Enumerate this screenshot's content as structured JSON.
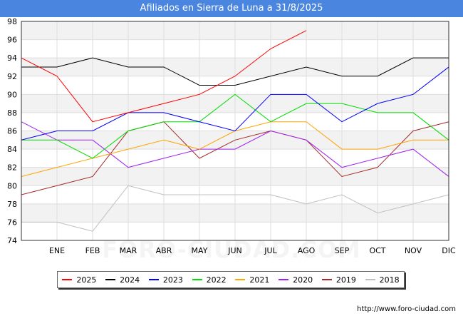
{
  "header": {
    "title": "Afiliados en Sierra de Luna a 31/8/2025"
  },
  "watermark": "FORO-CIUDAD.COM",
  "source": "http://www.foro-ciudad.com",
  "chart_data": {
    "type": "line",
    "title": "Afiliados en Sierra de Luna a 31/8/2025",
    "xlabel": "",
    "ylabel": "",
    "ylim": [
      74,
      98
    ],
    "yticks": [
      74,
      76,
      78,
      80,
      82,
      84,
      86,
      88,
      90,
      92,
      94,
      96,
      98
    ],
    "categories": [
      "",
      "ENE",
      "FEB",
      "MAR",
      "ABR",
      "MAY",
      "JUN",
      "JUL",
      "AGO",
      "SEP",
      "OCT",
      "NOV",
      "DIC"
    ],
    "legend_position": "bottom",
    "grid": true,
    "series": [
      {
        "name": "2025",
        "color": "#ff0000",
        "values": [
          94,
          92,
          87,
          88,
          89,
          90,
          92,
          95,
          97,
          null,
          null,
          null,
          null
        ]
      },
      {
        "name": "2024",
        "color": "#000000",
        "values": [
          93,
          93,
          94,
          93,
          93,
          91,
          91,
          92,
          93,
          92,
          92,
          94,
          94
        ]
      },
      {
        "name": "2023",
        "color": "#0000ff",
        "values": [
          85,
          86,
          86,
          88,
          88,
          87,
          86,
          90,
          90,
          87,
          89,
          90,
          93
        ]
      },
      {
        "name": "2022",
        "color": "#00dd00",
        "values": [
          85,
          85,
          83,
          86,
          87,
          87,
          90,
          87,
          89,
          89,
          88,
          88,
          85
        ]
      },
      {
        "name": "2021",
        "color": "#ffa500",
        "values": [
          81,
          82,
          83,
          84,
          85,
          84,
          86,
          87,
          87,
          84,
          84,
          85,
          85
        ]
      },
      {
        "name": "2020",
        "color": "#a020f0",
        "values": [
          87,
          85,
          85,
          82,
          83,
          84,
          84,
          86,
          85,
          82,
          83,
          84,
          81
        ]
      },
      {
        "name": "2019",
        "color": "#a52a2a",
        "values": [
          79,
          80,
          81,
          86,
          87,
          83,
          85,
          86,
          85,
          81,
          82,
          86,
          87
        ]
      },
      {
        "name": "2018",
        "color": "#c0c0c0",
        "values": [
          76,
          76,
          75,
          80,
          79,
          79,
          79,
          79,
          78,
          79,
          77,
          78,
          79
        ]
      }
    ]
  }
}
